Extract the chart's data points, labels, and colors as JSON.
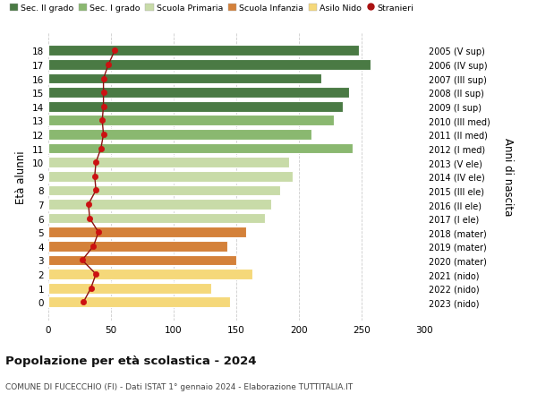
{
  "ages": [
    0,
    1,
    2,
    3,
    4,
    5,
    6,
    7,
    8,
    9,
    10,
    11,
    12,
    13,
    14,
    15,
    16,
    17,
    18
  ],
  "right_labels": [
    "2023 (nido)",
    "2022 (nido)",
    "2021 (nido)",
    "2020 (mater)",
    "2019 (mater)",
    "2018 (mater)",
    "2017 (I ele)",
    "2016 (II ele)",
    "2015 (III ele)",
    "2014 (IV ele)",
    "2013 (V ele)",
    "2012 (I med)",
    "2011 (II med)",
    "2010 (III med)",
    "2009 (I sup)",
    "2008 (II sup)",
    "2007 (III sup)",
    "2006 (IV sup)",
    "2005 (V sup)"
  ],
  "bar_values": [
    145,
    130,
    163,
    150,
    143,
    158,
    173,
    178,
    185,
    195,
    192,
    243,
    210,
    228,
    235,
    240,
    218,
    257,
    248
  ],
  "bar_colors": [
    "#f5d87a",
    "#f5d87a",
    "#f5d87a",
    "#d4813a",
    "#d4813a",
    "#d4813a",
    "#c8dba8",
    "#c8dba8",
    "#c8dba8",
    "#c8dba8",
    "#c8dba8",
    "#8ab870",
    "#8ab870",
    "#8ab870",
    "#4a7a44",
    "#4a7a44",
    "#4a7a44",
    "#4a7a44",
    "#4a7a44"
  ],
  "stranieri_values": [
    28,
    34,
    38,
    27,
    36,
    40,
    33,
    32,
    38,
    37,
    38,
    42,
    44,
    43,
    44,
    44,
    44,
    48,
    53
  ],
  "legend_labels": [
    "Sec. II grado",
    "Sec. I grado",
    "Scuola Primaria",
    "Scuola Infanzia",
    "Asilo Nido",
    "Stranieri"
  ],
  "legend_colors": [
    "#4a7a44",
    "#8ab870",
    "#c8dba8",
    "#d4813a",
    "#f5d87a",
    "#aa1111"
  ],
  "ylabel": "Età alunni",
  "right_ylabel": "Anni di nascita",
  "title": "Popolazione per età scolastica - 2024",
  "subtitle": "COMUNE DI FUCECCHIO (FI) - Dati ISTAT 1° gennaio 2024 - Elaborazione TUTTITALIA.IT",
  "xlim": [
    0,
    300
  ],
  "xticks": [
    0,
    50,
    100,
    150,
    200,
    250,
    300
  ],
  "background_color": "#ffffff",
  "grid_color": "#cccccc"
}
